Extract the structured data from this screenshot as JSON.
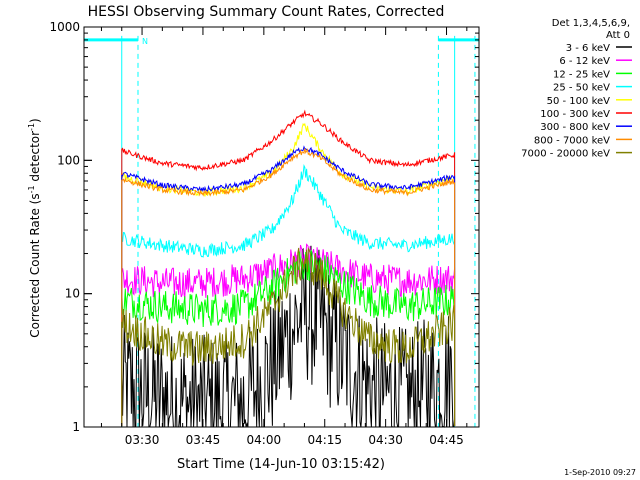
{
  "chart_data": {
    "type": "line",
    "title": "HESSI Observing Summary Count Rates, Corrected",
    "xlabel": "Start Time (14-Jun-10 03:15:42)",
    "ylabel": "Corrected Count Rate (s⁻¹ detector⁻¹)",
    "ylabel_main": "Corrected Count Rate (s",
    "ylabel_mid": " detector",
    "ylabel_end": ")",
    "ylabel_sup": "-1",
    "yscale": "log",
    "ylim": [
      1,
      1000
    ],
    "xlim": [
      "03:15:42",
      "04:53:00"
    ],
    "x_ticks": [
      "03:30",
      "03:45",
      "04:00",
      "04:15",
      "04:30",
      "04:45"
    ],
    "y_ticks": [
      "1",
      "10",
      "100",
      "1000"
    ],
    "legend_position": "right",
    "legend_header": [
      "Det 1,3,4,5,6,9,",
      "Att 0"
    ],
    "grid": false,
    "flag_marker": "N",
    "flag_bars": [
      [
        "03:15:42",
        "03:29:00"
      ],
      [
        "04:43:00",
        "04:53:00"
      ]
    ],
    "flag_level": 800,
    "dashed_lines": [
      "03:29:00",
      "04:43:00",
      "04:52:00"
    ],
    "solid_lines": [
      "03:25:00",
      "04:47:00"
    ],
    "timestamp": "1-Sep-2010 09:27",
    "series": [
      {
        "name": "3 - 6 keV",
        "color": "#000000",
        "noise": 0.55,
        "x": [
          "03:25",
          "03:35",
          "03:45",
          "03:55",
          "04:02",
          "04:07",
          "04:10",
          "04:14",
          "04:19",
          "04:26",
          "04:35",
          "04:47"
        ],
        "values": [
          2,
          1.6,
          1.4,
          1.5,
          2.8,
          5.5,
          7.5,
          6,
          3.5,
          2,
          1.6,
          2.5
        ]
      },
      {
        "name": "6 - 12 keV",
        "color": "#ff00ff",
        "noise": 0.12,
        "x": [
          "03:25",
          "03:35",
          "03:45",
          "03:55",
          "04:02",
          "04:07",
          "04:10",
          "04:14",
          "04:19",
          "04:26",
          "04:35",
          "04:47"
        ],
        "values": [
          13,
          12,
          12,
          13,
          15,
          17,
          18,
          17,
          15,
          13,
          12.5,
          13
        ]
      },
      {
        "name": "12 - 25 keV",
        "color": "#00ff00",
        "noise": 0.13,
        "x": [
          "03:25",
          "03:35",
          "03:45",
          "03:55",
          "04:02",
          "04:07",
          "04:10",
          "04:14",
          "04:19",
          "04:26",
          "04:35",
          "04:47"
        ],
        "values": [
          9,
          8,
          7.5,
          8,
          11,
          15,
          17,
          16,
          12,
          9,
          8,
          9
        ]
      },
      {
        "name": "25 - 50 keV",
        "color": "#00ffff",
        "noise": 0.05,
        "x": [
          "03:25",
          "03:35",
          "03:45",
          "03:55",
          "04:02",
          "04:07",
          "04:10",
          "04:14",
          "04:19",
          "04:26",
          "04:35",
          "04:47"
        ],
        "values": [
          26,
          23,
          21,
          23,
          30,
          50,
          85,
          55,
          30,
          24,
          23,
          26
        ]
      },
      {
        "name": "50 - 100 keV",
        "color": "#ffff00",
        "noise": 0.03,
        "x": [
          "03:25",
          "03:35",
          "03:45",
          "03:55",
          "04:02",
          "04:07",
          "04:10",
          "04:14",
          "04:19",
          "04:26",
          "04:35",
          "04:47"
        ],
        "values": [
          76,
          62,
          57,
          62,
          80,
          120,
          185,
          120,
          80,
          63,
          58,
          75
        ]
      },
      {
        "name": "100 - 300 keV",
        "color": "#ff0000",
        "noise": 0.02,
        "x": [
          "03:25",
          "03:35",
          "03:45",
          "03:55",
          "04:02",
          "04:07",
          "04:10",
          "04:14",
          "04:19",
          "04:26",
          "04:35",
          "04:47"
        ],
        "values": [
          118,
          95,
          88,
          100,
          140,
          190,
          225,
          190,
          140,
          100,
          92,
          110
        ]
      },
      {
        "name": "300 - 800 keV",
        "color": "#0000ff",
        "noise": 0.02,
        "x": [
          "03:25",
          "03:35",
          "03:45",
          "03:55",
          "04:02",
          "04:07",
          "04:10",
          "04:14",
          "04:19",
          "04:26",
          "04:35",
          "04:47"
        ],
        "values": [
          80,
          65,
          60,
          66,
          85,
          112,
          125,
          110,
          85,
          66,
          62,
          76
        ]
      },
      {
        "name": "800 - 7000 keV",
        "color": "#ff8c00",
        "noise": 0.02,
        "x": [
          "03:25",
          "03:35",
          "03:45",
          "03:55",
          "04:02",
          "04:07",
          "04:10",
          "04:14",
          "04:19",
          "04:26",
          "04:35",
          "04:47"
        ],
        "values": [
          72,
          60,
          56,
          60,
          78,
          105,
          118,
          104,
          78,
          60,
          57,
          70
        ]
      },
      {
        "name": "7000 - 20000 keV",
        "color": "#808000",
        "noise": 0.14,
        "x": [
          "03:25",
          "03:35",
          "03:45",
          "03:55",
          "04:02",
          "04:07",
          "04:10",
          "04:14",
          "04:19",
          "04:26",
          "04:35",
          "04:47"
        ],
        "values": [
          6,
          4.2,
          3.8,
          4.5,
          8,
          14,
          18,
          14,
          8,
          4.5,
          3.8,
          6
        ]
      }
    ]
  }
}
